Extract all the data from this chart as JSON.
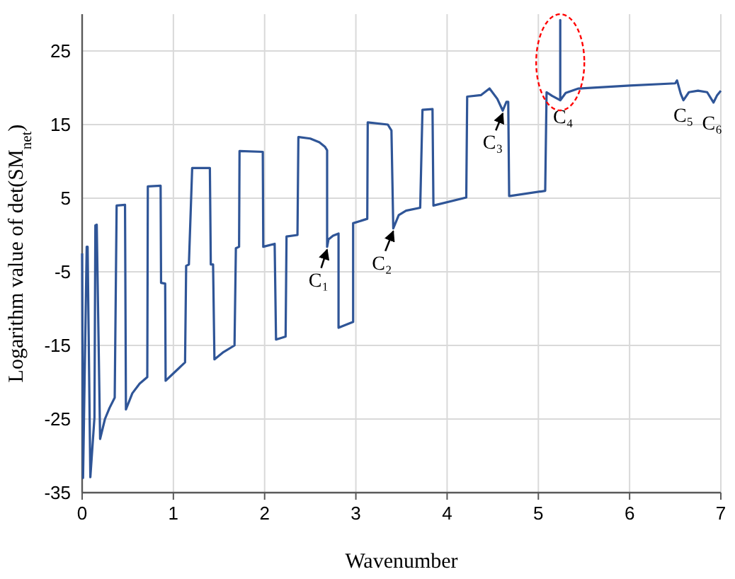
{
  "chart_data": {
    "type": "line",
    "xlabel": "Wavenumber",
    "ylabel": "Logarithm value of det(SM$_{net}$)",
    "xlim": [
      0,
      7
    ],
    "xticks": [
      0,
      1,
      2,
      3,
      4,
      5,
      6,
      7
    ],
    "ylim": [
      -35,
      30
    ],
    "yticks": [
      -35,
      -25,
      -15,
      -5,
      5,
      15,
      25
    ],
    "grid": true,
    "marker": "none",
    "line_style": "solid",
    "series": [
      {
        "color": "#2f5597",
        "x": [
          0,
          0.01,
          0.05,
          0.06,
          0.09,
          0.135,
          0.145,
          0.16,
          0.197,
          0.25,
          0.3,
          0.357,
          0.378,
          0.47,
          0.48,
          0.55,
          0.63,
          0.714,
          0.72,
          0.86,
          0.865,
          0.91,
          0.915,
          1.0,
          1.128,
          1.14,
          1.17,
          1.206,
          1.4,
          1.41,
          1.435,
          1.45,
          1.55,
          1.67,
          1.685,
          1.72,
          1.725,
          1.98,
          1.985,
          2.11,
          2.125,
          2.23,
          2.24,
          2.36,
          2.37,
          2.375,
          2.5,
          2.6,
          2.66,
          2.685,
          2.685,
          2.7,
          2.75,
          2.81,
          2.81,
          2.97,
          2.97,
          3.125,
          3.13,
          3.35,
          3.39,
          3.41,
          3.47,
          3.55,
          3.705,
          3.73,
          3.84,
          3.85,
          4.21,
          4.22,
          4.37,
          4.465,
          4.55,
          4.61,
          4.65,
          4.67,
          4.68,
          4.69,
          5.075,
          5.09,
          5.15,
          5.24,
          5.24,
          5.24,
          5.3,
          5.44,
          6.0,
          6.5,
          6.52,
          6.56,
          6.59,
          6.65,
          6.75,
          6.85,
          6.92,
          6.96,
          7.0
        ],
        "values": [
          -2.5,
          -33,
          -1.6,
          -1.6,
          -32.9,
          -24.8,
          1.3,
          1.4,
          -27.7,
          -25,
          -23.5,
          -22.1,
          4.0,
          4.1,
          -23.7,
          -21.5,
          -20.2,
          -19.3,
          6.6,
          6.7,
          -6.5,
          -6.6,
          -19.8,
          -18.8,
          -17.3,
          -4.2,
          -4.0,
          9.1,
          9.1,
          -4.0,
          -4.0,
          -16.9,
          -15.9,
          -15.0,
          -1.8,
          -1.6,
          11.4,
          11.3,
          -1.6,
          -1.2,
          -14.2,
          -13.8,
          -0.2,
          0,
          13.3,
          13.3,
          13.1,
          12.6,
          12.0,
          11.5,
          -1.6,
          -0.6,
          -0.1,
          0.2,
          -12.6,
          -11.8,
          1.6,
          2.2,
          15.3,
          15.0,
          14.2,
          0.9,
          2.7,
          3.3,
          3.7,
          17.0,
          17.1,
          4.0,
          5.1,
          18.8,
          19.0,
          19.9,
          18.5,
          16.9,
          18.1,
          18.1,
          5.3,
          5.3,
          6.0,
          19.4,
          18.9,
          18.3,
          29.2,
          18.3,
          19.3,
          19.9,
          20.3,
          20.6,
          21.0,
          19.2,
          18.3,
          19.4,
          19.6,
          19.4,
          18.0,
          19.0,
          19.6
        ]
      }
    ],
    "annotations": [
      {
        "text": "C₁",
        "x": 2.685,
        "y": -1.6
      },
      {
        "text": "C₂",
        "x": 3.41,
        "y": 0.9
      },
      {
        "text": "C₃",
        "x": 4.61,
        "y": 16.9
      },
      {
        "text": "C₄",
        "x": 5.24,
        "y": 18.3
      },
      {
        "text": "C₅",
        "x": 6.59,
        "y": 18.3
      },
      {
        "text": "C₆",
        "x": 6.92,
        "y": 18.0
      }
    ]
  }
}
